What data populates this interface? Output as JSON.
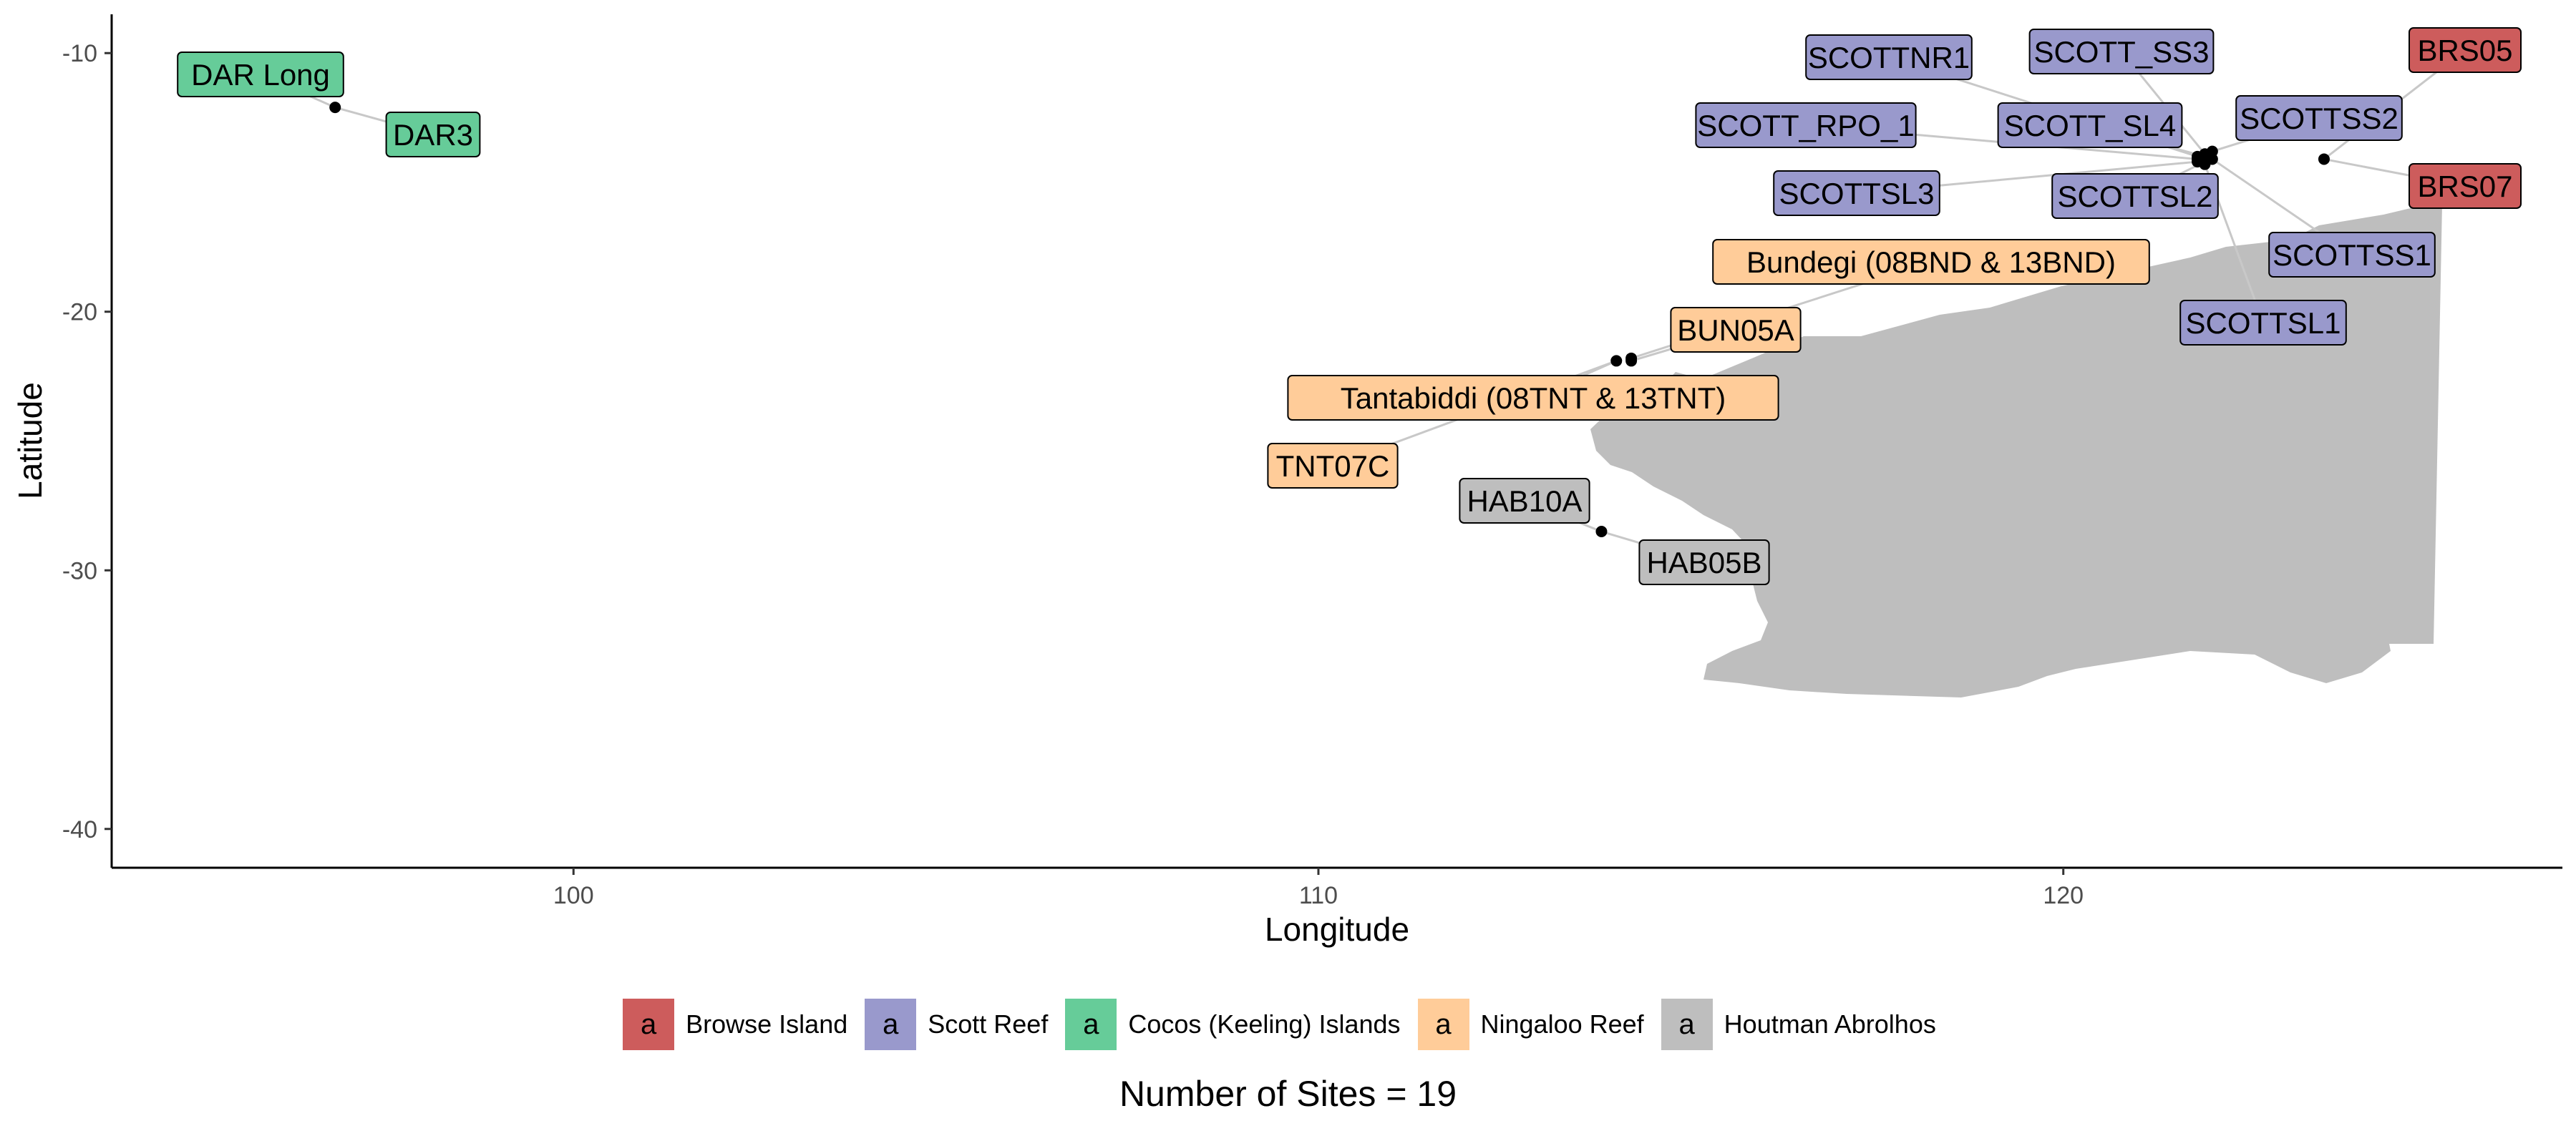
{
  "chart_data": {
    "type": "scatter",
    "xlabel": "Longitude",
    "ylabel": "Latitude",
    "xlim": [
      93.8,
      126.7
    ],
    "ylim": [
      -41.5,
      -8.5
    ],
    "x_ticks": [
      100,
      110,
      120
    ],
    "y_ticks": [
      -10,
      -20,
      -30,
      -40
    ],
    "x_tick_labels": [
      "100",
      "110",
      "120"
    ],
    "y_tick_labels": [
      "-10",
      "-20",
      "-30",
      "-40"
    ],
    "grid": false,
    "legend_position": "bottom",
    "legend": [
      {
        "name": "Browse Island",
        "color": "#CD5C5C",
        "key": "a"
      },
      {
        "name": "Scott Reef",
        "color": "#9999CC",
        "key": "a"
      },
      {
        "name": "Cocos (Keeling) Islands",
        "color": "#66CC99",
        "key": "a"
      },
      {
        "name": "Ningaloo Reef",
        "color": "#FFCC99",
        "key": "a"
      },
      {
        "name": "Houtman Abrolhos",
        "color": "#BEBEBE",
        "key": "a"
      }
    ],
    "points": [
      {
        "label": "BRS05",
        "group": "Browse Island",
        "lon": 123.5,
        "lat": -14.1
      },
      {
        "label": "BRS07",
        "group": "Browse Island",
        "lon": 123.5,
        "lat": -14.1
      },
      {
        "label": "SCOTTNR1",
        "group": "Scott Reef",
        "lon": 121.8,
        "lat": -14.0
      },
      {
        "label": "SCOTT_SS3",
        "group": "Scott Reef",
        "lon": 121.9,
        "lat": -13.9
      },
      {
        "label": "SCOTT_RPO_1",
        "group": "Scott Reef",
        "lon": 121.8,
        "lat": -14.1
      },
      {
        "label": "SCOTT_SL4",
        "group": "Scott Reef",
        "lon": 121.9,
        "lat": -14.0
      },
      {
        "label": "SCOTTSS2",
        "group": "Scott Reef",
        "lon": 122.0,
        "lat": -13.8
      },
      {
        "label": "SCOTTSL3",
        "group": "Scott Reef",
        "lon": 121.8,
        "lat": -14.2
      },
      {
        "label": "SCOTTSL2",
        "group": "Scott Reef",
        "lon": 121.9,
        "lat": -14.2
      },
      {
        "label": "SCOTTSS1",
        "group": "Scott Reef",
        "lon": 122.0,
        "lat": -14.1
      },
      {
        "label": "SCOTTSL1",
        "group": "Scott Reef",
        "lon": 121.9,
        "lat": -14.3
      },
      {
        "label": "DAR Long",
        "group": "Cocos (Keeling) Islands",
        "lon": 96.8,
        "lat": -12.1
      },
      {
        "label": "DAR3",
        "group": "Cocos (Keeling) Islands",
        "lon": 96.8,
        "lat": -12.1
      },
      {
        "label": "Bundegi (08BND & 13BND)",
        "group": "Ningaloo Reef",
        "lon": 114.2,
        "lat": -21.8
      },
      {
        "label": "BUN05A",
        "group": "Ningaloo Reef",
        "lon": 114.2,
        "lat": -21.9
      },
      {
        "label": "Tantabiddi (08TNT & 13TNT)",
        "group": "Ningaloo Reef",
        "lon": 114.0,
        "lat": -21.9
      },
      {
        "label": "TNT07C",
        "group": "Ningaloo Reef",
        "lon": 114.0,
        "lat": -21.9
      },
      {
        "label": "HAB10A",
        "group": "Houtman Abrolhos",
        "lon": 113.8,
        "lat": -28.5
      },
      {
        "label": "HAB05B",
        "group": "Houtman Abrolhos",
        "lon": 113.8,
        "lat": -28.5
      }
    ],
    "caption": "Number of Sites = 19"
  }
}
